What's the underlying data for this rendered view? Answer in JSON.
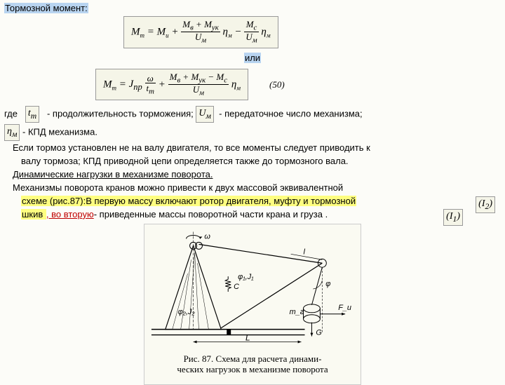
{
  "heading": "Тормозной момент:",
  "formula1": {
    "lhs": "M",
    "lhs_sub": "т",
    "t1": "M",
    "t1_sub": "и",
    "t2_num": "M<sub>в</sub> + M<sub>ук</sub>",
    "t2_den": "U<sub>м</sub>",
    "eta": "η",
    "eta_sub": "м",
    "t3_num": "M<sub>с</sub>",
    "t3_den": "U<sub>м</sub>"
  },
  "or_text": "или",
  "formula2": {
    "lhs": "M",
    "lhs_sub": "т",
    "pre": "J<sub>пр</sub>",
    "a_num": "ω",
    "a_den": "t<sub>т</sub>",
    "b_num": "M<sub>в</sub> + M<sub>ук</sub> − M<sub>с</sub>",
    "b_den": "U<sub>м</sub>",
    "eta": "η",
    "eta_sub": "м",
    "eqnum": "(50)"
  },
  "where_label": "где",
  "var_tt": "t<sub>т</sub>",
  "var_tt_desc": "-  продолжительность торможения;",
  "var_um": "U<sub>м</sub>",
  "var_um_desc": "- передаточное число механизма;",
  "var_eta": "η<sub>м</sub>",
  "var_eta_desc": "- КПД механизма.",
  "para1a": "Если тормоз установлен не на валу двигателя, то все моменты следует приводить к",
  "para1b": "валу тормоза; КПД приводной цепи определяется также до тормозного вала.",
  "para2": "Динамические нагрузки в механизме поворота.",
  "para3a": "Механизмы поворота кранов можно привести к двух массовой эквивалентной",
  "para3b": "схеме (рис.87):В первую массу включают ротор двигателя, муфту и тормозной",
  "para3c_pre": "шкив ",
  "para3c_mid": ", во вторую",
  "para3c_post": "- приведенные массы поворотной части крана и груза           .",
  "var_I1": "(I<sub>1</sub>)",
  "var_I2": "(I<sub>2</sub>)",
  "figure": {
    "omega": "ω",
    "phi1j1": "φ₁,J₁",
    "C": "C",
    "phi2j2": "φ₂,J₂",
    "L": "L",
    "l": "l",
    "phi": "φ",
    "mg": "m_г",
    "Fu": "F_u",
    "G": "G",
    "caption1": "Рис. 87. Схема для расчета динами-",
    "caption2": "ческих нагрузок в механизме поворота"
  },
  "colors": {
    "bg": "#fcfcf8",
    "hl_blue": "#b8d4f0",
    "hl_yellow": "#fefe80",
    "red": "#c00000",
    "formula_bg": "#f5f5e8"
  }
}
